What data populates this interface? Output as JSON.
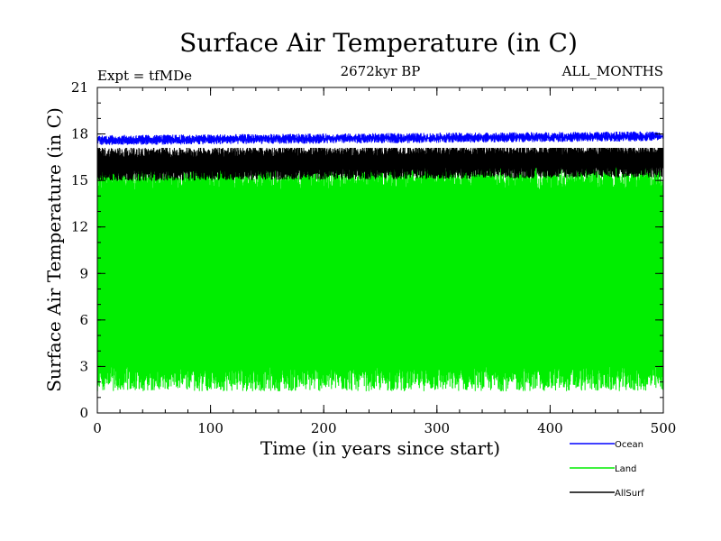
{
  "chart_data": {
    "type": "line",
    "title": "Surface Air Temperature (in C)",
    "subtitle_left": "Expt = tfMDe",
    "subtitle_center": "2672kyr BP",
    "subtitle_right": "ALL_MONTHS",
    "xlabel": "Time (in years since start)",
    "ylabel": "Surface Air Temperature (in C)",
    "xlim": [
      0,
      500
    ],
    "ylim": [
      0,
      21
    ],
    "xticks": [
      "0",
      "100",
      "200",
      "300",
      "400",
      "500"
    ],
    "yticks": [
      "0",
      "3",
      "6",
      "9",
      "12",
      "15",
      "18",
      "21"
    ],
    "series": [
      {
        "name": "Ocean",
        "color": "#0000ff",
        "mean": 17.6,
        "min": 17.3,
        "max": 18.2,
        "upper_envelope": 18.0
      },
      {
        "name": "Land",
        "color": "#00ee00",
        "mean": 8.5,
        "min": 1.3,
        "max": 16.0,
        "upper_envelope": 15.2,
        "lower_envelope": 2.2
      },
      {
        "name": "AllSurf",
        "color": "#000000",
        "mean": 16.0,
        "min": 14.8,
        "max": 17.1,
        "upper_envelope": 16.8,
        "lower_envelope": 15.3
      }
    ],
    "legend": [
      "Ocean",
      "Land",
      "AllSurf"
    ]
  }
}
